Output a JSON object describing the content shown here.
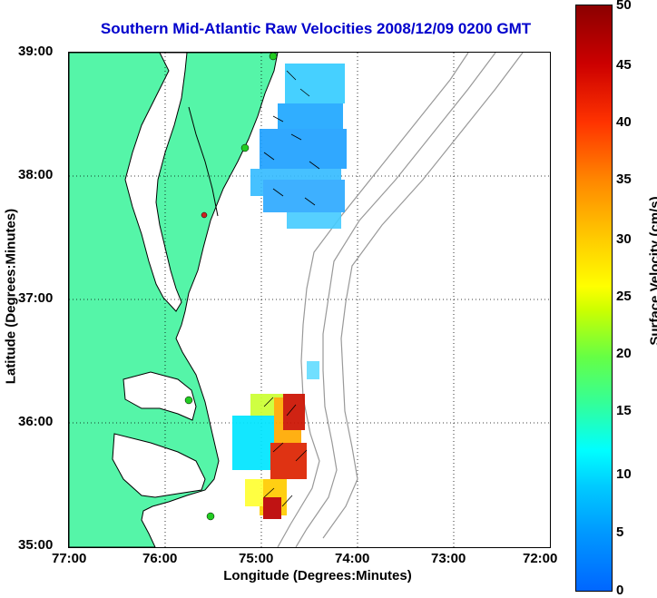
{
  "title": "Southern Mid-Atlantic Raw Velocities 2008/12/09 0200 GMT",
  "axes": {
    "xlabel": "Longitude (Degrees:Minutes)",
    "ylabel": "Latitude (Degrees:Minutes)",
    "xticks": [
      "77:00",
      "76:00",
      "75:00",
      "74:00",
      "73:00",
      "72:00"
    ],
    "yticks": [
      "39:00",
      "38:00",
      "37:00",
      "36:00",
      "35:00"
    ]
  },
  "colorbar": {
    "label": "Surface Velocity (cm/s)",
    "ticks": [
      "50",
      "45",
      "40",
      "35",
      "30",
      "25",
      "20",
      "15",
      "10",
      "5",
      "0"
    ],
    "range": [
      0,
      50
    ]
  },
  "colors": {
    "land": "#55f5a8",
    "title": "#0000cc",
    "coast": "#000000",
    "bathymetry": "#999999",
    "station": "#22cc22",
    "station_alt": "#cc2222"
  }
}
